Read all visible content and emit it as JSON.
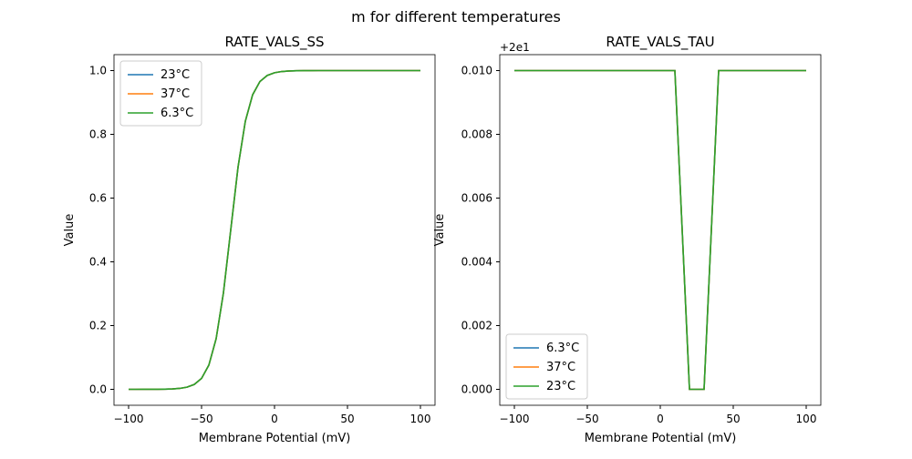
{
  "suptitle": "m for different temperatures",
  "chart_data": [
    {
      "type": "line",
      "title": "RATE_VALS_SS",
      "xlabel": "Membrane Potential (mV)",
      "ylabel": "Value",
      "xlim": [
        -110,
        110
      ],
      "ylim": [
        -0.05,
        1.05
      ],
      "xticks": [
        -100,
        -50,
        0,
        50,
        100
      ],
      "yticks": [
        0.0,
        0.2,
        0.4,
        0.6,
        0.8,
        1.0
      ],
      "ytick_decimals": 1,
      "offset_label": "",
      "legend": "top-left",
      "x": [
        -100,
        -95,
        -90,
        -85,
        -80,
        -75,
        -70,
        -65,
        -60,
        -55,
        -50,
        -45,
        -40,
        -35,
        -30,
        -25,
        -20,
        -15,
        -10,
        -5,
        0,
        5,
        10,
        15,
        20,
        25,
        30,
        35,
        40,
        45,
        50,
        55,
        60,
        65,
        70,
        75,
        80,
        85,
        90,
        95,
        100
      ],
      "series": [
        {
          "name": "23°C",
          "color": "#1f77b4"
        },
        {
          "name": "37°C",
          "color": "#ff7f0e"
        },
        {
          "name": "6.3°C",
          "color": "#2ca02c"
        }
      ],
      "values": [
        0,
        0,
        5e-05,
        0.0001,
        0.00024,
        0.0006,
        0.00127,
        0.0029,
        0.0067,
        0.0153,
        0.0344,
        0.0759,
        0.1589,
        0.3029,
        0.5,
        0.6971,
        0.8411,
        0.9241,
        0.9656,
        0.9847,
        0.9933,
        0.9971,
        0.9987,
        0.9995,
        0.9998,
        0.9999,
        1,
        1,
        1,
        1,
        1,
        1,
        1,
        1,
        1,
        1,
        1,
        1,
        1,
        1,
        1
      ]
    },
    {
      "type": "line",
      "title": "RATE_VALS_TAU",
      "xlabel": "Membrane Potential (mV)",
      "ylabel": "Value",
      "xlim": [
        -110,
        110
      ],
      "ylim": [
        19.9995,
        20.0105
      ],
      "xticks": [
        -100,
        -50,
        0,
        50,
        100
      ],
      "yticks": [
        20.0,
        20.002,
        20.004,
        20.006,
        20.008,
        20.01
      ],
      "ytick_decimals": 3,
      "offset": 20,
      "offset_label": "+2e1",
      "legend": "bottom-left",
      "x": [
        -100,
        -90,
        -80,
        -70,
        -60,
        -50,
        -40,
        -30,
        -20,
        -10,
        0,
        10,
        20,
        30,
        40,
        50,
        60,
        70,
        80,
        90,
        100
      ],
      "series": [
        {
          "name": "6.3°C",
          "color": "#1f77b4"
        },
        {
          "name": "37°C",
          "color": "#ff7f0e"
        },
        {
          "name": "23°C",
          "color": "#2ca02c"
        }
      ],
      "values": [
        20.01,
        20.01,
        20.01,
        20.01,
        20.01,
        20.01,
        20.01,
        20.01,
        20.01,
        20.01,
        20.01,
        20.01,
        20.0,
        20.0,
        20.01,
        20.01,
        20.01,
        20.01,
        20.01,
        20.01,
        20.01
      ]
    }
  ]
}
